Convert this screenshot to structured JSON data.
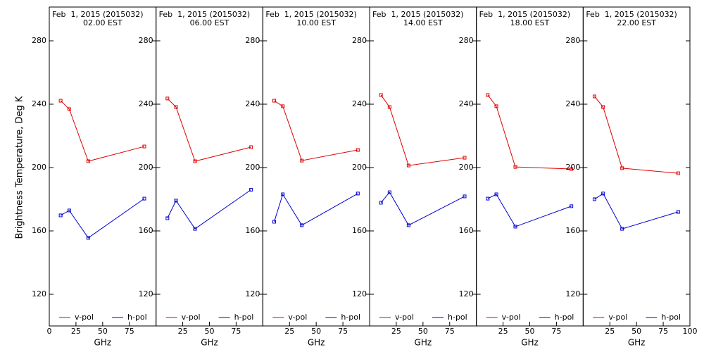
{
  "ylabel": "Brightness Temperature, Deg K",
  "chart_data": [
    {
      "type": "line",
      "title": "Feb  1, 2015 (2015032)",
      "subtitle": "02.00 EST",
      "xlabel": "GHz",
      "x": [
        10.65,
        18.7,
        36.5,
        89
      ],
      "xlim": [
        0,
        100
      ],
      "xticks": [
        0,
        25,
        50,
        75
      ],
      "ylim": [
        100,
        300
      ],
      "yticks": [
        120,
        160,
        200,
        240,
        280
      ],
      "series": [
        {
          "name": "v-pol",
          "color": "#e00000",
          "values": [
            242.2,
            236.9,
            204,
            213.3
          ]
        },
        {
          "name": "h-pol",
          "color": "#0000d0",
          "values": [
            169.8,
            172.9,
            155.6,
            180.4
          ]
        }
      ]
    },
    {
      "type": "line",
      "title": "Feb  1, 2015 (2015032)",
      "subtitle": "06.00 EST",
      "xlabel": "GHz",
      "x": [
        10.65,
        18.7,
        36.5,
        89
      ],
      "xlim": [
        0,
        100
      ],
      "xticks": [
        25,
        50,
        75
      ],
      "ylim": [
        100,
        300
      ],
      "yticks": [
        120,
        160,
        200,
        240,
        280
      ],
      "series": [
        {
          "name": "v-pol",
          "color": "#e00000",
          "values": [
            243.6,
            238.2,
            204,
            212.9
          ]
        },
        {
          "name": "h-pol",
          "color": "#0000d0",
          "values": [
            168,
            179.1,
            161.3,
            186
          ]
        }
      ]
    },
    {
      "type": "line",
      "title": "Feb  1, 2015 (2015032)",
      "subtitle": "10.00 EST",
      "xlabel": "GHz",
      "x": [
        10.65,
        18.7,
        36.5,
        89
      ],
      "xlim": [
        0,
        100
      ],
      "xticks": [
        25,
        50,
        75
      ],
      "ylim": [
        100,
        300
      ],
      "yticks": [
        120,
        160,
        200,
        240,
        280
      ],
      "series": [
        {
          "name": "v-pol",
          "color": "#e00000",
          "values": [
            242.2,
            238.7,
            204.4,
            211.1
          ]
        },
        {
          "name": "h-pol",
          "color": "#0000d0",
          "values": [
            165.8,
            183.1,
            163.6,
            183.6
          ]
        }
      ]
    },
    {
      "type": "line",
      "title": "Feb  1, 2015 (2015032)",
      "subtitle": "14.00 EST",
      "xlabel": "GHz",
      "x": [
        10.65,
        18.7,
        36.5,
        89
      ],
      "xlim": [
        0,
        100
      ],
      "xticks": [
        25,
        50,
        75
      ],
      "ylim": [
        100,
        300
      ],
      "yticks": [
        120,
        160,
        200,
        240,
        280
      ],
      "series": [
        {
          "name": "v-pol",
          "color": "#e00000",
          "values": [
            245.8,
            238.2,
            201.3,
            206.2
          ]
        },
        {
          "name": "h-pol",
          "color": "#0000d0",
          "values": [
            177.8,
            184.4,
            163.6,
            181.8
          ]
        }
      ]
    },
    {
      "type": "line",
      "title": "Feb  1, 2015 (2015032)",
      "subtitle": "18.00 EST",
      "xlabel": "GHz",
      "x": [
        10.65,
        18.7,
        36.5,
        89
      ],
      "xlim": [
        0,
        100
      ],
      "xticks": [
        25,
        50,
        75
      ],
      "ylim": [
        100,
        300
      ],
      "yticks": [
        120,
        160,
        200,
        240,
        280
      ],
      "series": [
        {
          "name": "v-pol",
          "color": "#e00000",
          "values": [
            245.8,
            238.7,
            200.4,
            199.1
          ]
        },
        {
          "name": "h-pol",
          "color": "#0000d0",
          "values": [
            180.4,
            183.1,
            162.7,
            175.6
          ]
        }
      ]
    },
    {
      "type": "line",
      "title": "Feb  1, 2015 (2015032)",
      "subtitle": "22.00 EST",
      "xlabel": "GHz",
      "x": [
        10.65,
        18.7,
        36.5,
        89
      ],
      "xlim": [
        0,
        100
      ],
      "xticks": [
        25,
        50,
        75,
        100
      ],
      "ylim": [
        100,
        300
      ],
      "yticks": [
        120,
        160,
        200,
        240,
        280
      ],
      "series": [
        {
          "name": "v-pol",
          "color": "#e00000",
          "values": [
            244.9,
            238.2,
            199.6,
            196.4
          ]
        },
        {
          "name": "h-pol",
          "color": "#0000d0",
          "values": [
            180,
            183.6,
            161.3,
            172
          ]
        }
      ]
    }
  ]
}
